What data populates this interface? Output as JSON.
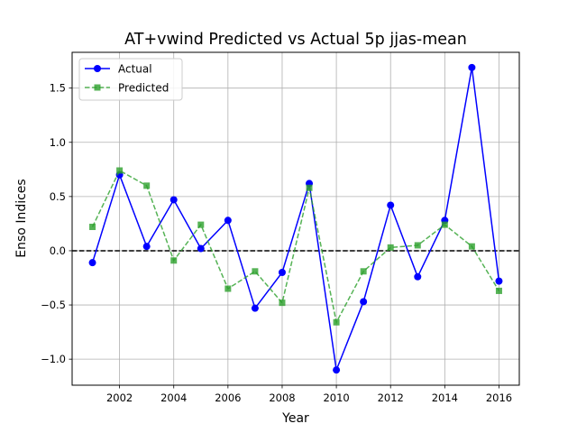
{
  "chart_data": {
    "type": "line",
    "title": "AT+vwind Predicted vs Actual 5p jjas-mean",
    "xlabel": "Year",
    "ylabel": "Enso Indices",
    "x": [
      2001,
      2002,
      2003,
      2004,
      2005,
      2006,
      2007,
      2008,
      2009,
      2010,
      2011,
      2012,
      2013,
      2014,
      2015,
      2016
    ],
    "series": [
      {
        "name": "Actual",
        "color": "#0000ff",
        "marker": "circle",
        "linestyle": "solid",
        "values": [
          -0.11,
          0.7,
          0.04,
          0.47,
          0.02,
          0.28,
          -0.53,
          -0.2,
          0.62,
          -1.1,
          -0.47,
          0.42,
          -0.24,
          0.28,
          1.69,
          -0.28
        ]
      },
      {
        "name": "Predicted",
        "color": "#2ca02c",
        "marker": "square",
        "linestyle": "dashed",
        "values": [
          0.22,
          0.74,
          0.6,
          -0.09,
          0.24,
          -0.35,
          -0.19,
          -0.48,
          0.58,
          -0.66,
          -0.19,
          0.03,
          0.05,
          0.24,
          0.04,
          -0.37
        ]
      }
    ],
    "xlim": [
      2000.25,
      2016.75
    ],
    "ylim": [
      -1.24,
      1.83
    ],
    "xticks": [
      2002,
      2004,
      2006,
      2008,
      2010,
      2012,
      2014,
      2016
    ],
    "xtick_labels": [
      "2002",
      "2004",
      "2006",
      "2008",
      "2010",
      "2012",
      "2014",
      "2016"
    ],
    "yticks": [
      -1.0,
      -0.5,
      0.0,
      0.5,
      1.0,
      1.5
    ],
    "ytick_labels": [
      "−1.0",
      "−0.5",
      "0.0",
      "0.5",
      "1.0",
      "1.5"
    ],
    "reference_line": {
      "y": 0,
      "color": "#000000",
      "linestyle": "dashed"
    },
    "grid": true,
    "legend": "top-left"
  }
}
